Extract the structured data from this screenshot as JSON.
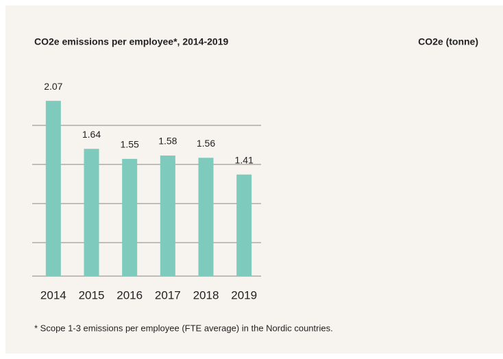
{
  "chart_data": {
    "type": "bar",
    "title": "CO2e emissions per employee*, 2014-2019",
    "y_axis_label": "CO2e (tonne)",
    "footnote": "* Scope 1-3 emissions per employee (FTE average) in the Nordic countries.",
    "categories": [
      "2014",
      "2015",
      "2016",
      "2017",
      "2018",
      "2019"
    ],
    "values": [
      2.07,
      1.64,
      1.55,
      1.58,
      1.56,
      1.41
    ],
    "color": "#7ecbbd",
    "ylim": [
      0.5,
      2.2
    ],
    "yticks": [
      0.8,
      1.15,
      1.5,
      1.85
    ],
    "grid": true
  }
}
